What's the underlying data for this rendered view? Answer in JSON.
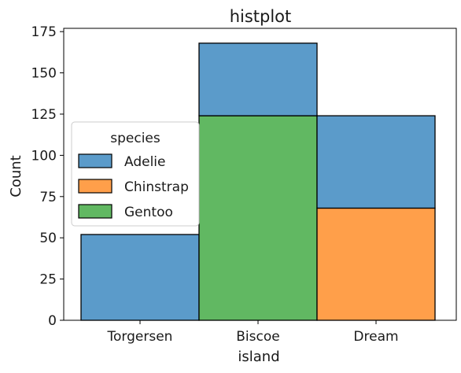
{
  "chart_data": {
    "type": "bar",
    "stacked": true,
    "title": "histplot",
    "xlabel": "island",
    "ylabel": "Count",
    "categories": [
      "Torgersen",
      "Biscoe",
      "Dream"
    ],
    "series": [
      {
        "name": "Adelie",
        "color": "#5b9bca",
        "values": [
          52,
          44,
          56
        ]
      },
      {
        "name": "Chinstrap",
        "color": "#ff9f4a",
        "values": [
          0,
          0,
          68
        ]
      },
      {
        "name": "Gentoo",
        "color": "#61b862",
        "values": [
          0,
          124,
          0
        ]
      }
    ],
    "totals": [
      52,
      168,
      124
    ],
    "ylim": [
      0,
      177
    ],
    "yticks": [
      0,
      25,
      50,
      75,
      100,
      125,
      150,
      175
    ],
    "legend": {
      "title": "species",
      "position": "center-left"
    },
    "grid": false
  }
}
